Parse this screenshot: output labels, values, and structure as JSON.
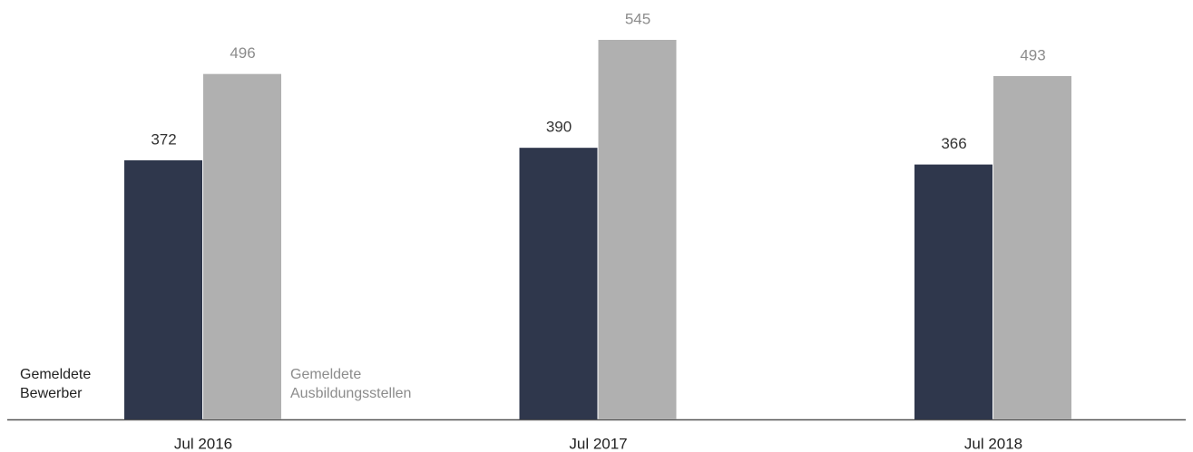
{
  "chart_data": {
    "type": "bar",
    "categories": [
      "Jul 2016",
      "Jul 2017",
      "Jul 2018"
    ],
    "series": [
      {
        "name": "Gemeldete Bewerber",
        "color": "#2f374c",
        "label_color": "#333333",
        "values": [
          372,
          390,
          366
        ]
      },
      {
        "name": "Gemeldete Ausbildungsstellen",
        "color": "#b0b0b0",
        "label_color": "#8c8c8c",
        "values": [
          496,
          545,
          493
        ]
      }
    ]
  }
}
